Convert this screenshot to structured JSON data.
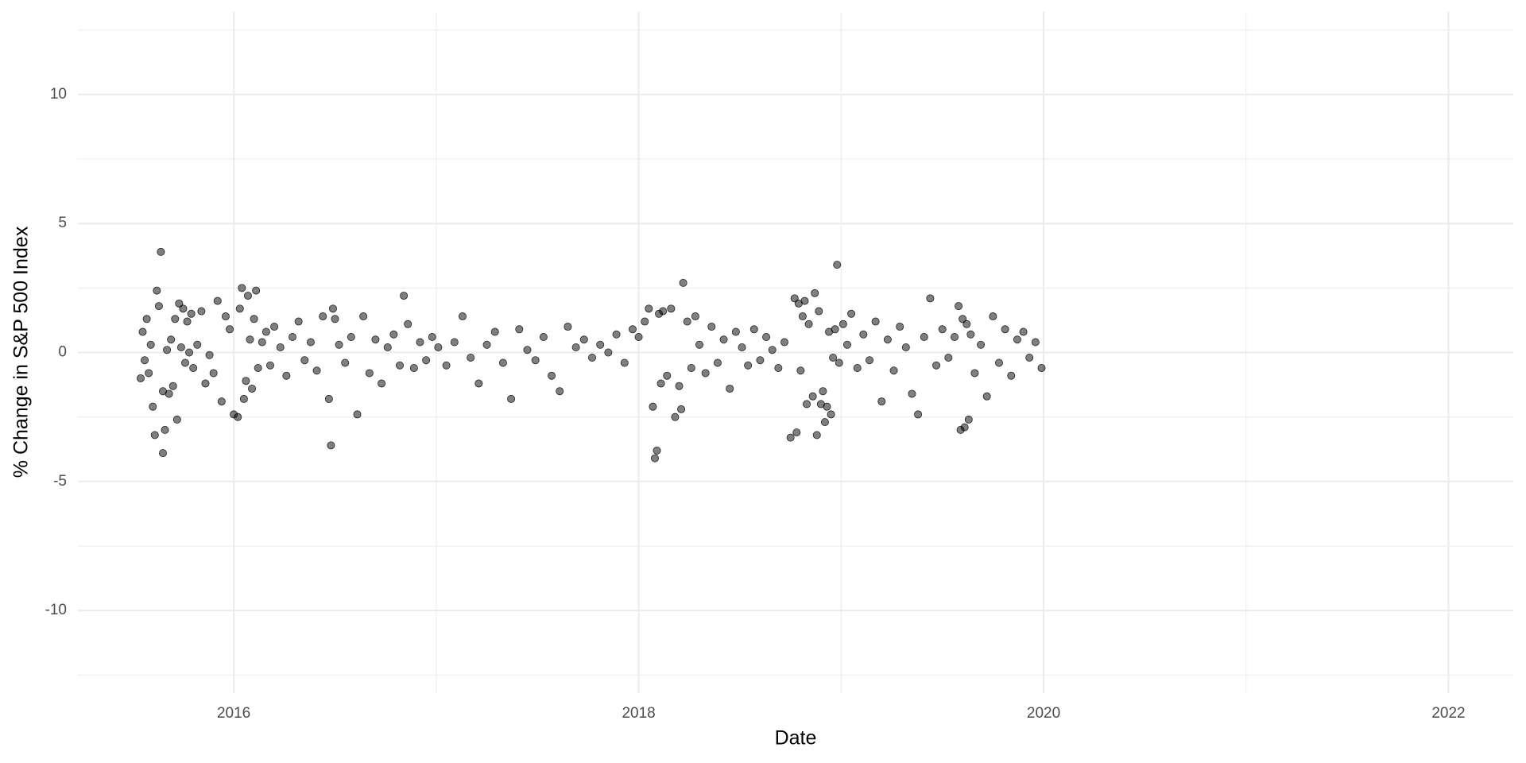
{
  "chart_data": {
    "type": "scatter",
    "x_label": "Date",
    "y_label": "% Change in S&P 500 Index",
    "xlim": [
      2015.23,
      2022.32
    ],
    "ylim": [
      -13.2,
      13.2
    ],
    "xticks": [
      2016,
      2018,
      2020,
      2022
    ],
    "yticks": [
      -10,
      -5,
      0,
      5,
      10
    ],
    "x_minor_grid": [
      2017,
      2019,
      2021
    ],
    "y_minor_grid": [
      -12.5,
      -7.5,
      -2.5,
      2.5,
      7.5,
      12.5
    ],
    "grid": true,
    "color": "#000000",
    "alpha": 0.5,
    "x": [
      2015.54,
      2015.55,
      2015.56,
      2015.57,
      2015.58,
      2015.59,
      2015.6,
      2015.61,
      2015.62,
      2015.63,
      2015.64,
      2015.65,
      2015.65,
      2015.66,
      2015.67,
      2015.68,
      2015.69,
      2015.7,
      2015.71,
      2015.72,
      2015.73,
      2015.74,
      2015.75,
      2015.76,
      2015.77,
      2015.78,
      2015.79,
      2015.8,
      2015.82,
      2015.84,
      2015.86,
      2015.88,
      2015.9,
      2015.92,
      2015.94,
      2015.96,
      2015.98,
      2016.0,
      2016.02,
      2016.03,
      2016.04,
      2016.05,
      2016.06,
      2016.07,
      2016.08,
      2016.09,
      2016.1,
      2016.11,
      2016.12,
      2016.14,
      2016.16,
      2016.18,
      2016.2,
      2016.23,
      2016.26,
      2016.29,
      2016.32,
      2016.35,
      2016.38,
      2016.41,
      2016.44,
      2016.47,
      2016.48,
      2016.49,
      2016.5,
      2016.52,
      2016.55,
      2016.58,
      2016.61,
      2016.64,
      2016.67,
      2016.7,
      2016.73,
      2016.76,
      2016.79,
      2016.82,
      2016.84,
      2016.86,
      2016.89,
      2016.92,
      2016.95,
      2016.98,
      2017.01,
      2017.05,
      2017.09,
      2017.13,
      2017.17,
      2017.21,
      2017.25,
      2017.29,
      2017.33,
      2017.37,
      2017.41,
      2017.45,
      2017.49,
      2017.53,
      2017.57,
      2017.61,
      2017.65,
      2017.69,
      2017.73,
      2017.77,
      2017.81,
      2017.85,
      2017.89,
      2017.93,
      2017.97,
      2018.0,
      2018.03,
      2018.05,
      2018.07,
      2018.08,
      2018.09,
      2018.1,
      2018.11,
      2018.12,
      2018.14,
      2018.16,
      2018.18,
      2018.2,
      2018.21,
      2018.22,
      2018.24,
      2018.26,
      2018.28,
      2018.3,
      2018.33,
      2018.36,
      2018.39,
      2018.42,
      2018.45,
      2018.48,
      2018.51,
      2018.54,
      2018.57,
      2018.6,
      2018.63,
      2018.66,
      2018.69,
      2018.72,
      2018.75,
      2018.77,
      2018.78,
      2018.79,
      2018.8,
      2018.81,
      2018.82,
      2018.83,
      2018.84,
      2018.86,
      2018.87,
      2018.88,
      2018.89,
      2018.9,
      2018.91,
      2018.92,
      2018.93,
      2018.94,
      2018.95,
      2018.96,
      2018.97,
      2018.98,
      2018.99,
      2019.01,
      2019.03,
      2019.05,
      2019.08,
      2019.11,
      2019.14,
      2019.17,
      2019.2,
      2019.23,
      2019.26,
      2019.29,
      2019.32,
      2019.35,
      2019.38,
      2019.41,
      2019.44,
      2019.47,
      2019.5,
      2019.53,
      2019.56,
      2019.58,
      2019.59,
      2019.6,
      2019.61,
      2019.62,
      2019.63,
      2019.64,
      2019.66,
      2019.69,
      2019.72,
      2019.75,
      2019.78,
      2019.81,
      2019.84,
      2019.87,
      2019.9,
      2019.93,
      2019.96,
      2019.99
    ],
    "values": [
      -1.0,
      0.8,
      -0.3,
      1.3,
      -0.8,
      0.3,
      -2.1,
      -3.2,
      2.4,
      1.8,
      3.9,
      -3.9,
      -1.5,
      -3.0,
      0.1,
      -1.6,
      0.5,
      -1.3,
      1.3,
      -2.6,
      1.9,
      0.2,
      1.7,
      -0.4,
      1.2,
      0.0,
      1.5,
      -0.6,
      0.3,
      1.6,
      -1.2,
      -0.1,
      -0.8,
      2.0,
      -1.9,
      1.4,
      0.9,
      -2.4,
      -2.5,
      1.7,
      2.5,
      -1.8,
      -1.1,
      2.2,
      0.5,
      -1.4,
      1.3,
      2.4,
      -0.6,
      0.4,
      0.8,
      -0.5,
      1.0,
      0.2,
      -0.9,
      0.6,
      1.2,
      -0.3,
      0.4,
      -0.7,
      1.4,
      -1.8,
      -3.6,
      1.7,
      1.3,
      0.3,
      -0.4,
      0.6,
      -2.4,
      1.4,
      -0.8,
      0.5,
      -1.2,
      0.2,
      0.7,
      -0.5,
      2.2,
      1.1,
      -0.6,
      0.4,
      -0.3,
      0.6,
      0.2,
      -0.5,
      0.4,
      1.4,
      -0.2,
      -1.2,
      0.3,
      0.8,
      -0.4,
      -1.8,
      0.9,
      0.1,
      -0.3,
      0.6,
      -0.9,
      -1.5,
      1.0,
      0.2,
      0.5,
      -0.2,
      0.3,
      0.0,
      0.7,
      -0.4,
      0.9,
      0.6,
      1.2,
      1.7,
      -2.1,
      -4.1,
      -3.8,
      1.5,
      -1.2,
      1.6,
      -0.9,
      1.7,
      -2.5,
      -1.3,
      -2.2,
      2.7,
      1.2,
      -0.6,
      1.4,
      0.3,
      -0.8,
      1.0,
      -0.4,
      0.5,
      -1.4,
      0.8,
      0.2,
      -0.5,
      0.9,
      -0.3,
      0.6,
      0.1,
      -0.6,
      0.4,
      -3.3,
      2.1,
      -3.1,
      1.9,
      -0.7,
      1.4,
      2.0,
      -2.0,
      1.1,
      -1.7,
      2.3,
      -3.2,
      1.6,
      -2.0,
      -1.5,
      -2.7,
      -2.1,
      0.8,
      -2.4,
      -0.2,
      0.9,
      3.4,
      -0.4,
      1.1,
      0.3,
      1.5,
      -0.6,
      0.7,
      -0.3,
      1.2,
      -1.9,
      0.5,
      -0.7,
      1.0,
      0.2,
      -1.6,
      -2.4,
      0.6,
      2.1,
      -0.5,
      0.9,
      -0.2,
      0.6,
      1.8,
      -3.0,
      1.3,
      -2.9,
      1.1,
      -2.6,
      0.7,
      -0.8,
      0.3,
      -1.7,
      1.4,
      -0.4,
      0.9,
      -0.9,
      0.5,
      0.8,
      -0.2,
      0.4,
      -0.6
    ]
  }
}
